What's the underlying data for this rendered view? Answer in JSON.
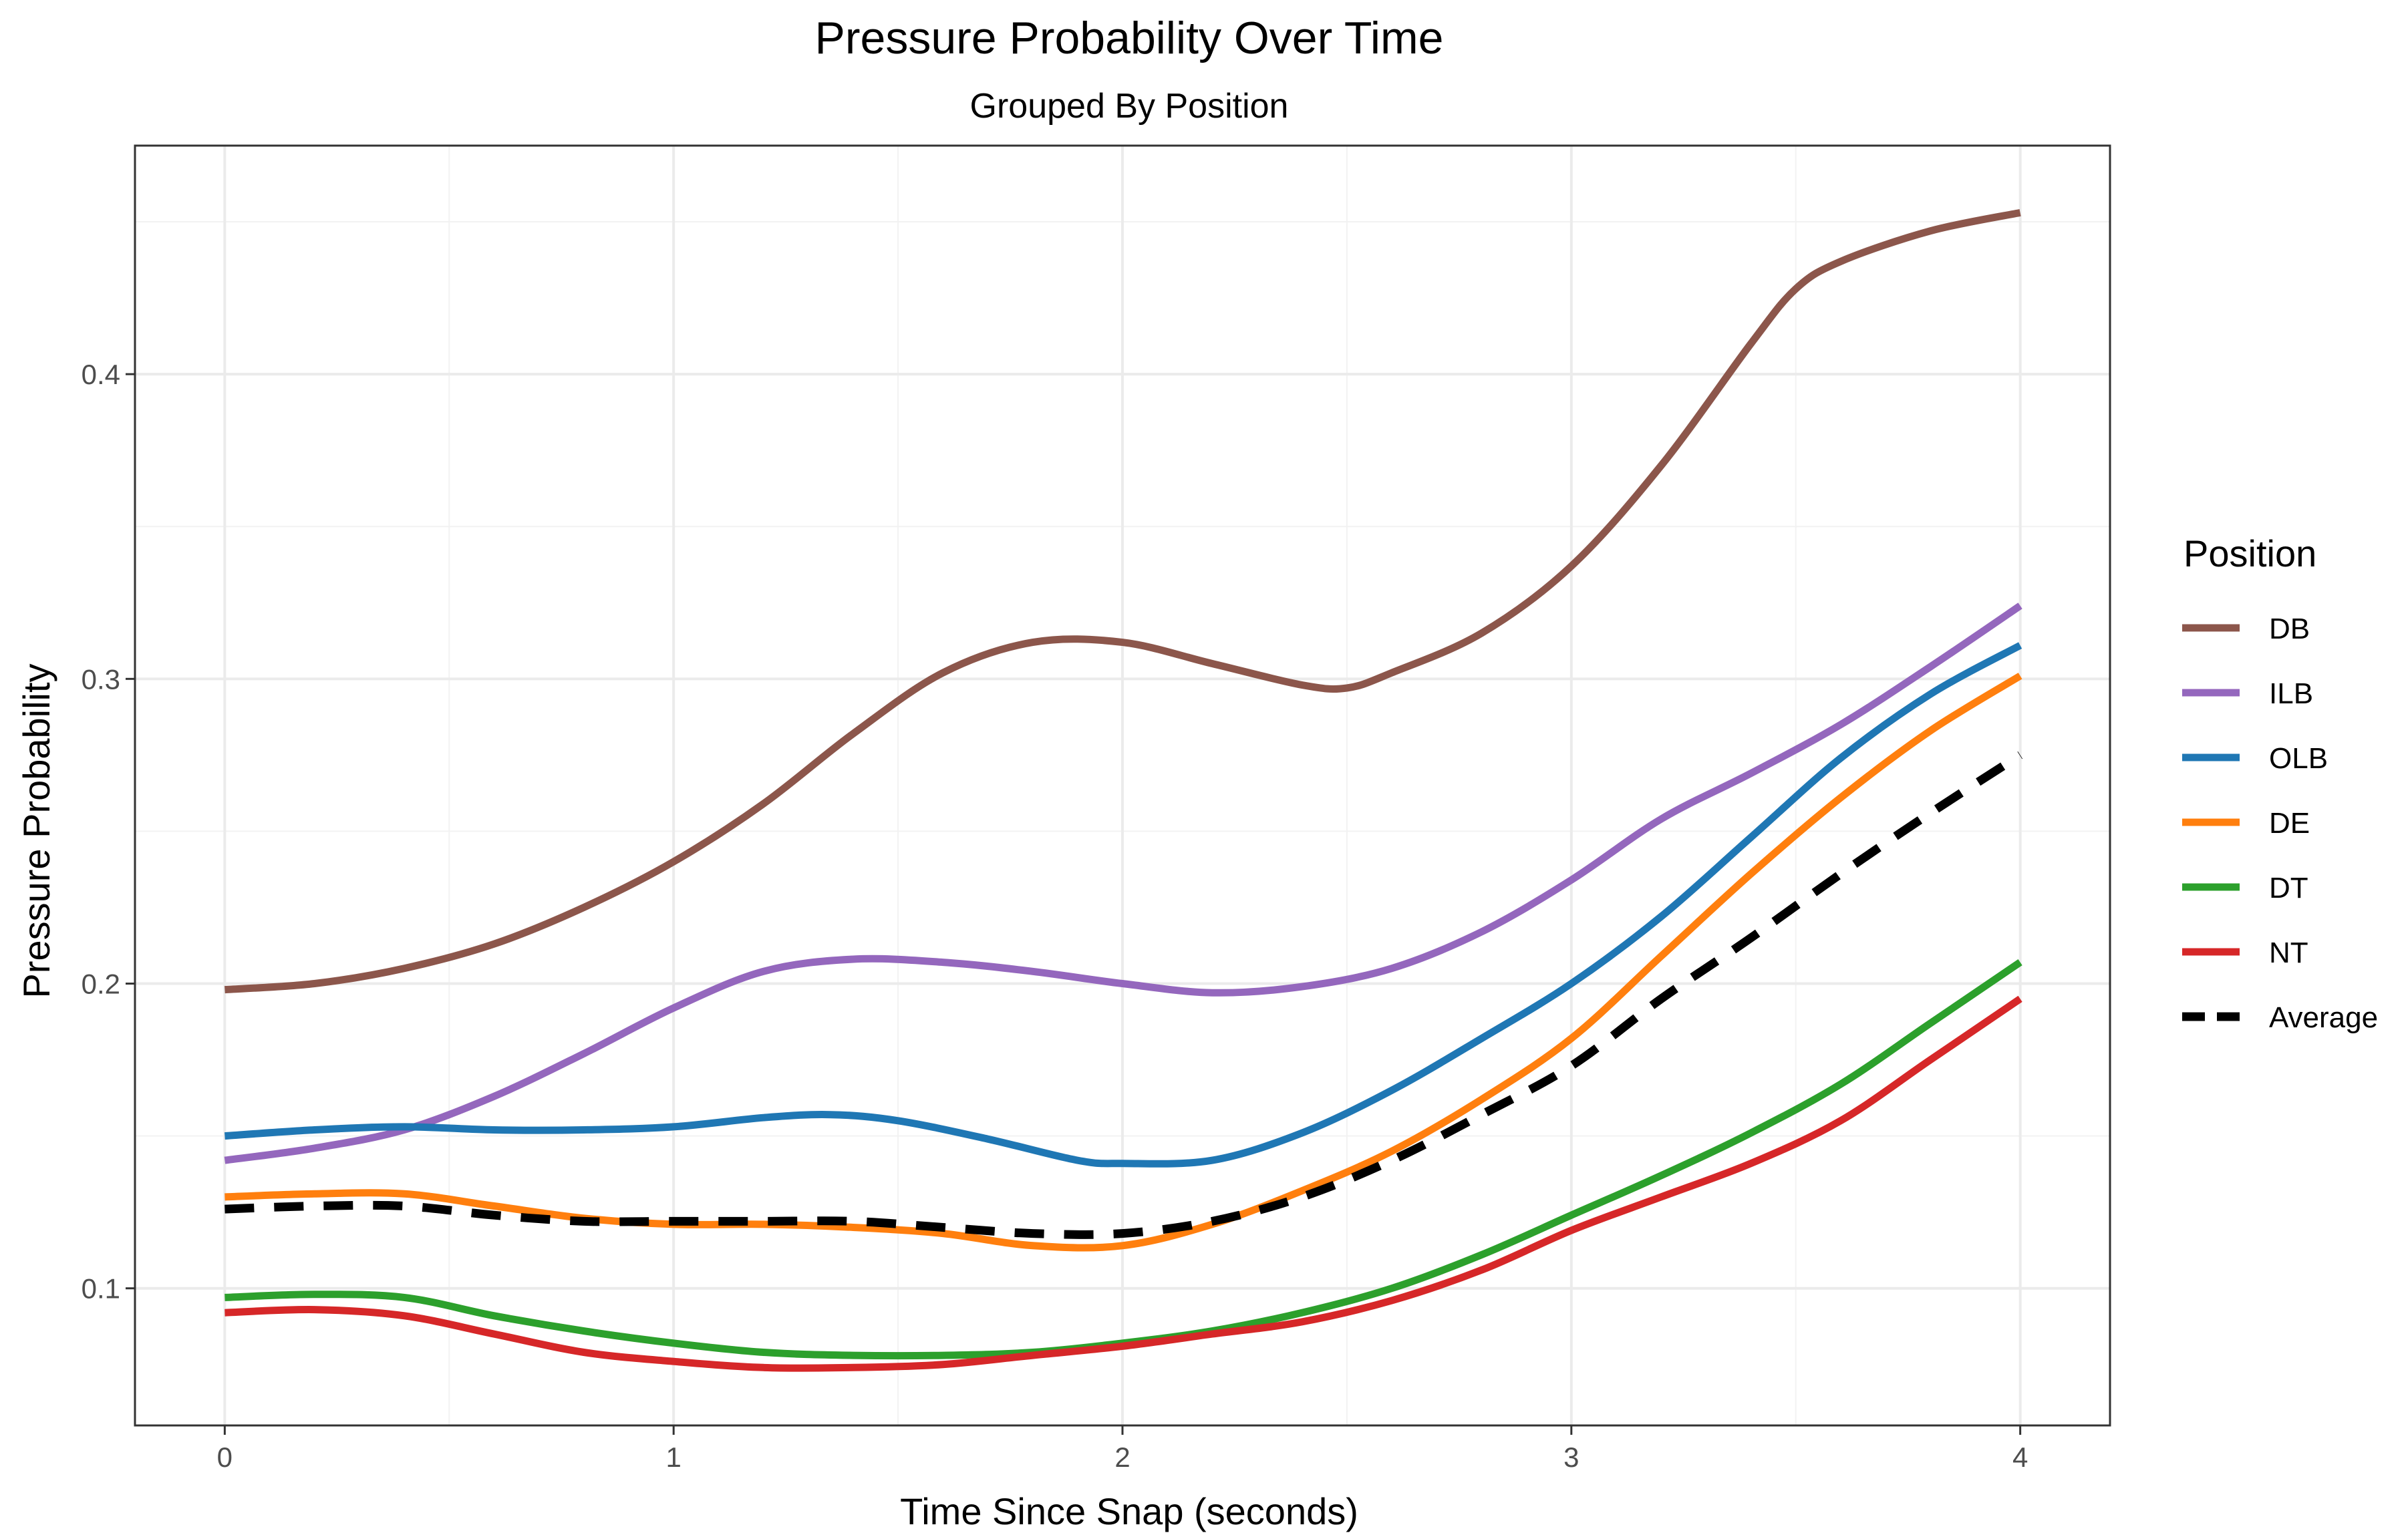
{
  "chart_data": {
    "type": "line",
    "title": "Pressure Probability Over Time",
    "subtitle": "Grouped By Position",
    "xlabel": "Time Since Snap (seconds)",
    "ylabel": "Pressure Probability",
    "xlim": [
      -0.2,
      4.2
    ],
    "ylim": [
      0.055,
      0.475
    ],
    "x_ticks": [
      0,
      1,
      2,
      3,
      4
    ],
    "x_tick_labels": [
      "0",
      "1",
      "2",
      "3",
      "4"
    ],
    "y_ticks": [
      0.1,
      0.2,
      0.3,
      0.4
    ],
    "y_tick_labels": [
      "0.1",
      "0.2",
      "0.3",
      "0.4"
    ],
    "x_minor_ticks": [
      0.5,
      1.5,
      2.5,
      3.5
    ],
    "y_minor_ticks": [
      0.15,
      0.25,
      0.35,
      0.45
    ],
    "grid": true,
    "legend": {
      "title": "Position",
      "placement": "right"
    },
    "series": [
      {
        "name": "DB",
        "color": "#8c564b",
        "dash": false,
        "points": [
          [
            0,
            0.198
          ],
          [
            0.2,
            0.2
          ],
          [
            0.4,
            0.205
          ],
          [
            0.6,
            0.213
          ],
          [
            0.8,
            0.225
          ],
          [
            1.0,
            0.24
          ],
          [
            1.2,
            0.259
          ],
          [
            1.4,
            0.282
          ],
          [
            1.6,
            0.302
          ],
          [
            1.8,
            0.312
          ],
          [
            2.0,
            0.312
          ],
          [
            2.2,
            0.305
          ],
          [
            2.4,
            0.298
          ],
          [
            2.5,
            0.297
          ],
          [
            2.6,
            0.302
          ],
          [
            2.8,
            0.315
          ],
          [
            3.0,
            0.337
          ],
          [
            3.2,
            0.37
          ],
          [
            3.4,
            0.41
          ],
          [
            3.5,
            0.428
          ],
          [
            3.6,
            0.437
          ],
          [
            3.8,
            0.447
          ],
          [
            4.0,
            0.453
          ]
        ]
      },
      {
        "name": "ILB",
        "color": "#9467bd",
        "dash": false,
        "points": [
          [
            0,
            0.142
          ],
          [
            0.2,
            0.146
          ],
          [
            0.4,
            0.152
          ],
          [
            0.6,
            0.163
          ],
          [
            0.8,
            0.177
          ],
          [
            1.0,
            0.192
          ],
          [
            1.2,
            0.204
          ],
          [
            1.4,
            0.208
          ],
          [
            1.6,
            0.207
          ],
          [
            1.8,
            0.204
          ],
          [
            2.0,
            0.2
          ],
          [
            2.2,
            0.197
          ],
          [
            2.4,
            0.199
          ],
          [
            2.6,
            0.205
          ],
          [
            2.8,
            0.217
          ],
          [
            3.0,
            0.234
          ],
          [
            3.2,
            0.254
          ],
          [
            3.4,
            0.269
          ],
          [
            3.6,
            0.285
          ],
          [
            3.8,
            0.304
          ],
          [
            4.0,
            0.324
          ]
        ]
      },
      {
        "name": "OLB",
        "color": "#1f77b4",
        "dash": false,
        "points": [
          [
            0,
            0.15
          ],
          [
            0.2,
            0.152
          ],
          [
            0.4,
            0.153
          ],
          [
            0.6,
            0.152
          ],
          [
            0.8,
            0.152
          ],
          [
            1.0,
            0.153
          ],
          [
            1.2,
            0.156
          ],
          [
            1.35,
            0.157
          ],
          [
            1.5,
            0.155
          ],
          [
            1.7,
            0.149
          ],
          [
            1.9,
            0.142
          ],
          [
            2.0,
            0.141
          ],
          [
            2.2,
            0.142
          ],
          [
            2.4,
            0.151
          ],
          [
            2.6,
            0.165
          ],
          [
            2.8,
            0.182
          ],
          [
            3.0,
            0.2
          ],
          [
            3.2,
            0.222
          ],
          [
            3.4,
            0.248
          ],
          [
            3.6,
            0.274
          ],
          [
            3.8,
            0.295
          ],
          [
            4.0,
            0.311
          ]
        ]
      },
      {
        "name": "DE",
        "color": "#ff7f0e",
        "dash": false,
        "points": [
          [
            0,
            0.13
          ],
          [
            0.2,
            0.131
          ],
          [
            0.4,
            0.131
          ],
          [
            0.6,
            0.127
          ],
          [
            0.8,
            0.123
          ],
          [
            1.0,
            0.121
          ],
          [
            1.2,
            0.121
          ],
          [
            1.4,
            0.12
          ],
          [
            1.6,
            0.118
          ],
          [
            1.8,
            0.114
          ],
          [
            2.0,
            0.114
          ],
          [
            2.2,
            0.121
          ],
          [
            2.4,
            0.132
          ],
          [
            2.6,
            0.145
          ],
          [
            2.8,
            0.162
          ],
          [
            3.0,
            0.182
          ],
          [
            3.2,
            0.209
          ],
          [
            3.4,
            0.236
          ],
          [
            3.6,
            0.261
          ],
          [
            3.8,
            0.283
          ],
          [
            4.0,
            0.301
          ]
        ]
      },
      {
        "name": "DT",
        "color": "#2ca02c",
        "dash": false,
        "points": [
          [
            0,
            0.097
          ],
          [
            0.2,
            0.098
          ],
          [
            0.4,
            0.097
          ],
          [
            0.6,
            0.091
          ],
          [
            0.8,
            0.086
          ],
          [
            1.0,
            0.082
          ],
          [
            1.2,
            0.079
          ],
          [
            1.4,
            0.078
          ],
          [
            1.6,
            0.078
          ],
          [
            1.8,
            0.079
          ],
          [
            2.0,
            0.082
          ],
          [
            2.2,
            0.086
          ],
          [
            2.4,
            0.092
          ],
          [
            2.6,
            0.1
          ],
          [
            2.8,
            0.111
          ],
          [
            3.0,
            0.124
          ],
          [
            3.2,
            0.137
          ],
          [
            3.4,
            0.151
          ],
          [
            3.6,
            0.167
          ],
          [
            3.8,
            0.187
          ],
          [
            4.0,
            0.207
          ]
        ]
      },
      {
        "name": "NT",
        "color": "#d62728",
        "dash": false,
        "points": [
          [
            0,
            0.092
          ],
          [
            0.2,
            0.093
          ],
          [
            0.4,
            0.091
          ],
          [
            0.6,
            0.085
          ],
          [
            0.8,
            0.079
          ],
          [
            1.0,
            0.076
          ],
          [
            1.2,
            0.074
          ],
          [
            1.4,
            0.074
          ],
          [
            1.6,
            0.075
          ],
          [
            1.8,
            0.078
          ],
          [
            2.0,
            0.081
          ],
          [
            2.2,
            0.085
          ],
          [
            2.4,
            0.089
          ],
          [
            2.6,
            0.096
          ],
          [
            2.8,
            0.106
          ],
          [
            3.0,
            0.119
          ],
          [
            3.2,
            0.13
          ],
          [
            3.4,
            0.141
          ],
          [
            3.6,
            0.155
          ],
          [
            3.8,
            0.175
          ],
          [
            4.0,
            0.195
          ]
        ]
      },
      {
        "name": "Average",
        "color": "#000000",
        "dash": true,
        "points": [
          [
            0,
            0.126
          ],
          [
            0.2,
            0.127
          ],
          [
            0.4,
            0.127
          ],
          [
            0.6,
            0.124
          ],
          [
            0.8,
            0.122
          ],
          [
            1.0,
            0.122
          ],
          [
            1.2,
            0.122
          ],
          [
            1.4,
            0.122
          ],
          [
            1.6,
            0.12
          ],
          [
            1.8,
            0.118
          ],
          [
            2.0,
            0.118
          ],
          [
            2.2,
            0.122
          ],
          [
            2.4,
            0.13
          ],
          [
            2.6,
            0.142
          ],
          [
            2.8,
            0.157
          ],
          [
            3.0,
            0.173
          ],
          [
            3.2,
            0.195
          ],
          [
            3.4,
            0.215
          ],
          [
            3.6,
            0.236
          ],
          [
            3.8,
            0.256
          ],
          [
            4.0,
            0.275
          ]
        ]
      }
    ]
  }
}
